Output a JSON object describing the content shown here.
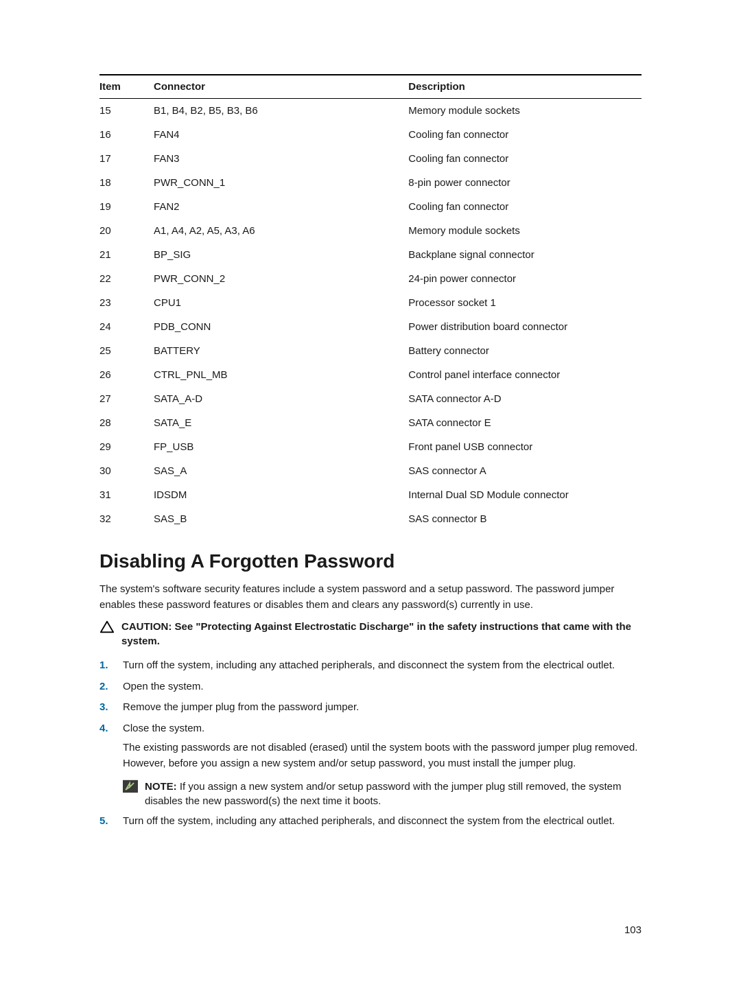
{
  "table": {
    "headers": {
      "item": "Item",
      "connector": "Connector",
      "description": "Description"
    },
    "rows": [
      {
        "item": "15",
        "connector": "B1, B4, B2, B5, B3, B6",
        "description": "Memory module sockets"
      },
      {
        "item": "16",
        "connector": "FAN4",
        "description": "Cooling fan connector"
      },
      {
        "item": "17",
        "connector": "FAN3",
        "description": "Cooling fan connector"
      },
      {
        "item": "18",
        "connector": "PWR_CONN_1",
        "description": "8-pin power connector"
      },
      {
        "item": "19",
        "connector": "FAN2",
        "description": "Cooling fan connector"
      },
      {
        "item": "20",
        "connector": "A1, A4, A2, A5, A3, A6",
        "description": "Memory module sockets"
      },
      {
        "item": "21",
        "connector": "BP_SIG",
        "description": "Backplane signal connector"
      },
      {
        "item": "22",
        "connector": "PWR_CONN_2",
        "description": "24-pin power connector"
      },
      {
        "item": "23",
        "connector": "CPU1",
        "description": "Processor socket 1"
      },
      {
        "item": "24",
        "connector": "PDB_CONN",
        "description": "Power distribution board connector"
      },
      {
        "item": "25",
        "connector": "BATTERY",
        "description": "Battery connector"
      },
      {
        "item": "26",
        "connector": "CTRL_PNL_MB",
        "description": "Control panel interface connector"
      },
      {
        "item": "27",
        "connector": "SATA_A-D",
        "description": "SATA connector A-D"
      },
      {
        "item": "28",
        "connector": "SATA_E",
        "description": "SATA connector E"
      },
      {
        "item": "29",
        "connector": "FP_USB",
        "description": "Front panel USB connector"
      },
      {
        "item": "30",
        "connector": "SAS_A",
        "description": "SAS connector A"
      },
      {
        "item": "31",
        "connector": "IDSDM",
        "description": "Internal Dual SD Module connector"
      },
      {
        "item": "32",
        "connector": "SAS_B",
        "description": "SAS connector B"
      }
    ]
  },
  "heading": "Disabling A Forgotten Password",
  "intro": "The system's software security features include a system password and a setup password. The password jumper enables these password features or disables them and clears any password(s) currently in use.",
  "caution": {
    "label": "CAUTION: ",
    "text": "See \"Protecting Against Electrostatic Discharge\" in the safety instructions that came with the system."
  },
  "steps": {
    "s1": "Turn off the system, including any attached peripherals, and disconnect the system from the electrical outlet.",
    "s2": "Open the system.",
    "s3": "Remove the jumper plug from the password jumper.",
    "s4": "Close the system.",
    "s4_extra": "The existing passwords are not disabled (erased) until the system boots with the password jumper plug removed. However, before you assign a new system and/or setup password, you must install the jumper plug.",
    "s4_note_label": "NOTE: ",
    "s4_note_text": "If you assign a new system and/or setup password with the jumper plug still removed, the system disables the new password(s) the next time it boots.",
    "s5": "Turn off the system, including any attached peripherals, and disconnect the system from the electrical outlet."
  },
  "page_number": "103",
  "colors": {
    "step_num": "#0066a1",
    "note_bg": "#3a3a3a",
    "note_fg": "#a8c97f"
  }
}
